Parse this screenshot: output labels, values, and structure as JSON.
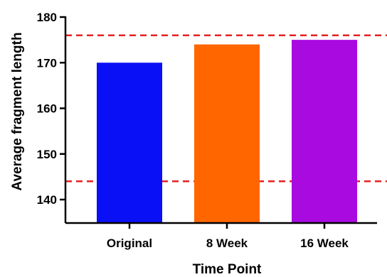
{
  "chart_data": {
    "type": "bar",
    "title": "",
    "xlabel": "Time Point",
    "ylabel": "Average fragment length",
    "categories": [
      "Original",
      "8 Week",
      "16 Week"
    ],
    "values": [
      170,
      174,
      175
    ],
    "bar_colors": [
      "#0a10f5",
      "#ff6600",
      "#a80ae0"
    ],
    "ylim": [
      135,
      180
    ],
    "yticks": [
      140,
      150,
      160,
      170,
      180
    ],
    "reference_lines": [
      {
        "y": 176,
        "color": "#e62020",
        "style": "dashed"
      },
      {
        "y": 144,
        "color": "#e62020",
        "style": "dashed"
      }
    ],
    "grid": false,
    "legend": "none"
  }
}
